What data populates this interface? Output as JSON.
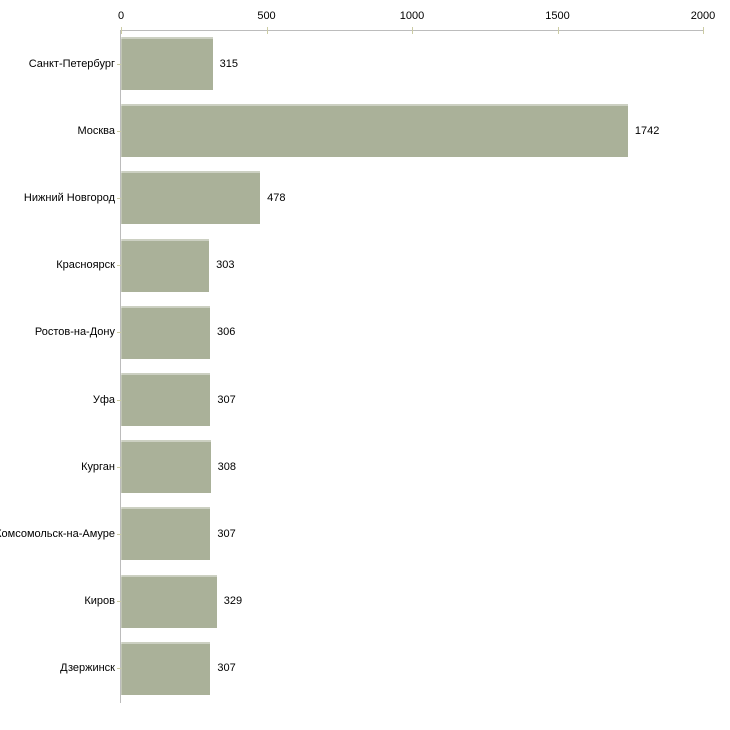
{
  "chart_data": {
    "type": "bar",
    "orientation": "horizontal",
    "title": "",
    "xlabel": "",
    "ylabel": "",
    "categories": [
      "Санкт-Петербург",
      "Москва",
      "Нижний Новгород",
      "Красноярск",
      "Ростов-на-Дону",
      "Уфа",
      "Курган",
      "Комсомольск-на-Амуре",
      "Киров",
      "Дзержинск"
    ],
    "values": [
      315,
      1742,
      478,
      303,
      306,
      307,
      308,
      307,
      329,
      307
    ],
    "value_labels": [
      "315",
      "1742",
      "478",
      "303",
      "306",
      "307",
      "308",
      "307",
      "329",
      "307"
    ],
    "xlim": [
      0,
      2000
    ],
    "x_ticks": [
      0,
      500,
      1000,
      1500,
      2000
    ],
    "x_tick_labels": [
      "0",
      "500",
      "1000",
      "1500",
      "2000"
    ],
    "grid": false,
    "legend": "none",
    "colors": {
      "bar_fill": "#aab199",
      "tick_mark": "#cbcba3",
      "axis_line": "#bcbcbc",
      "text": "#000000",
      "background": "#ffffff"
    }
  }
}
